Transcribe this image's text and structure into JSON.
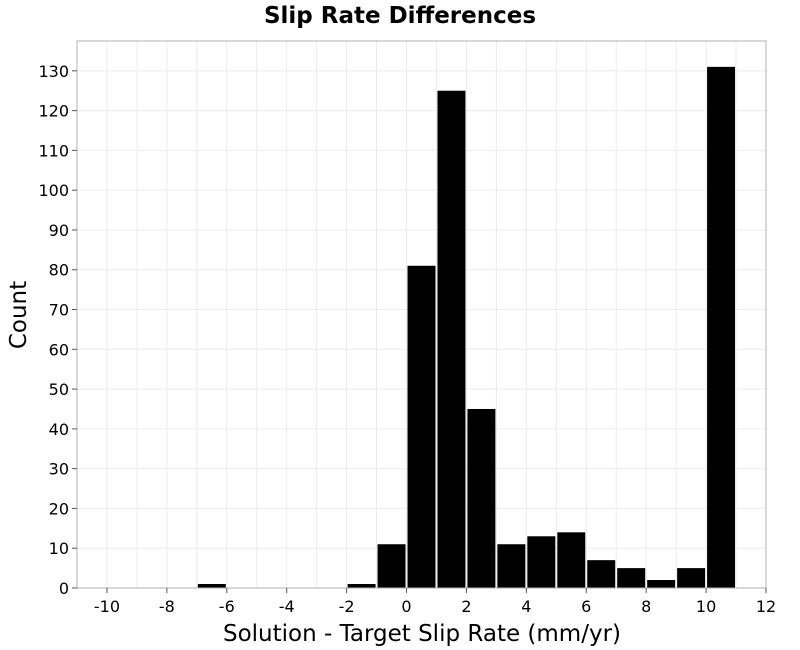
{
  "chart_data": {
    "type": "bar",
    "title": "Slip Rate Differences",
    "xlabel": "Solution - Target Slip Rate (mm/yr)",
    "ylabel": "Count",
    "xlim": [
      -11,
      12
    ],
    "ylim": [
      0,
      137.5
    ],
    "x_ticks": [
      -10,
      -8,
      -6,
      -4,
      -2,
      0,
      2,
      4,
      6,
      8,
      10,
      12
    ],
    "y_ticks": [
      0,
      10,
      20,
      30,
      40,
      50,
      60,
      70,
      80,
      90,
      100,
      110,
      120,
      130
    ],
    "bin_width": 1,
    "bins": [
      {
        "x": -6.5,
        "count": 1
      },
      {
        "x": -1.5,
        "count": 1
      },
      {
        "x": -0.5,
        "count": 11
      },
      {
        "x": 0.5,
        "count": 81
      },
      {
        "x": 1.5,
        "count": 125
      },
      {
        "x": 2.5,
        "count": 45
      },
      {
        "x": 3.5,
        "count": 11
      },
      {
        "x": 4.5,
        "count": 13
      },
      {
        "x": 5.5,
        "count": 14
      },
      {
        "x": 6.5,
        "count": 7
      },
      {
        "x": 7.5,
        "count": 5
      },
      {
        "x": 8.5,
        "count": 2
      },
      {
        "x": 9.5,
        "count": 5
      },
      {
        "x": 10.5,
        "count": 131
      }
    ],
    "bar_color": "#000000",
    "grid": true
  }
}
